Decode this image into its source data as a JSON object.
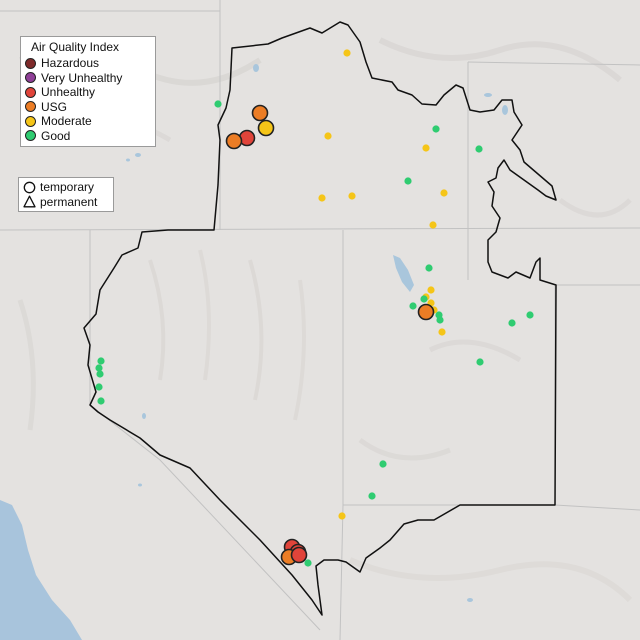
{
  "legend": {
    "title": "Air Quality Index",
    "categories": [
      {
        "label": "Hazardous",
        "color": "#7e2a2a"
      },
      {
        "label": "Very Unhealthy",
        "color": "#8f3f97"
      },
      {
        "label": "Unhealthy",
        "color": "#e0443a"
      },
      {
        "label": "USG",
        "color": "#ec7d25"
      },
      {
        "label": "Moderate",
        "color": "#f5c518"
      },
      {
        "label": "Good",
        "color": "#2fcc71"
      }
    ]
  },
  "monitor_types": {
    "temporary": "temporary",
    "permanent": "permanent"
  },
  "sites": {
    "large": [
      {
        "level": "USG"
      },
      {
        "level": "Unhealthy"
      },
      {
        "level": "USG"
      },
      {
        "level": "Moderate"
      },
      {
        "level": "USG"
      },
      {
        "level": "Unhealthy"
      },
      {
        "level": "Unhealthy"
      },
      {
        "level": "USG"
      },
      {
        "level": "Unhealthy"
      }
    ],
    "small": [
      {
        "level": "Moderate"
      },
      {
        "level": "Good"
      },
      {
        "level": "Good"
      },
      {
        "level": "Moderate"
      },
      {
        "level": "Moderate"
      },
      {
        "level": "Good"
      },
      {
        "level": "Moderate"
      },
      {
        "level": "Moderate"
      },
      {
        "level": "Moderate"
      },
      {
        "level": "Moderate"
      },
      {
        "level": "Moderate"
      },
      {
        "level": "Good"
      },
      {
        "level": "Moderate"
      },
      {
        "level": "Good"
      },
      {
        "level": "Moderate"
      },
      {
        "level": "Good"
      },
      {
        "level": "Moderate"
      },
      {
        "level": "Good"
      },
      {
        "level": "Moderate"
      },
      {
        "level": "Good"
      },
      {
        "level": "Good"
      },
      {
        "level": "Good"
      },
      {
        "level": "Good"
      },
      {
        "level": "Good"
      },
      {
        "level": "Good"
      },
      {
        "level": "Good"
      },
      {
        "level": "Good"
      },
      {
        "level": "Good"
      },
      {
        "level": "Good"
      },
      {
        "level": "Good"
      },
      {
        "level": "Good"
      },
      {
        "level": "Moderate"
      },
      {
        "level": "Good"
      }
    ]
  }
}
